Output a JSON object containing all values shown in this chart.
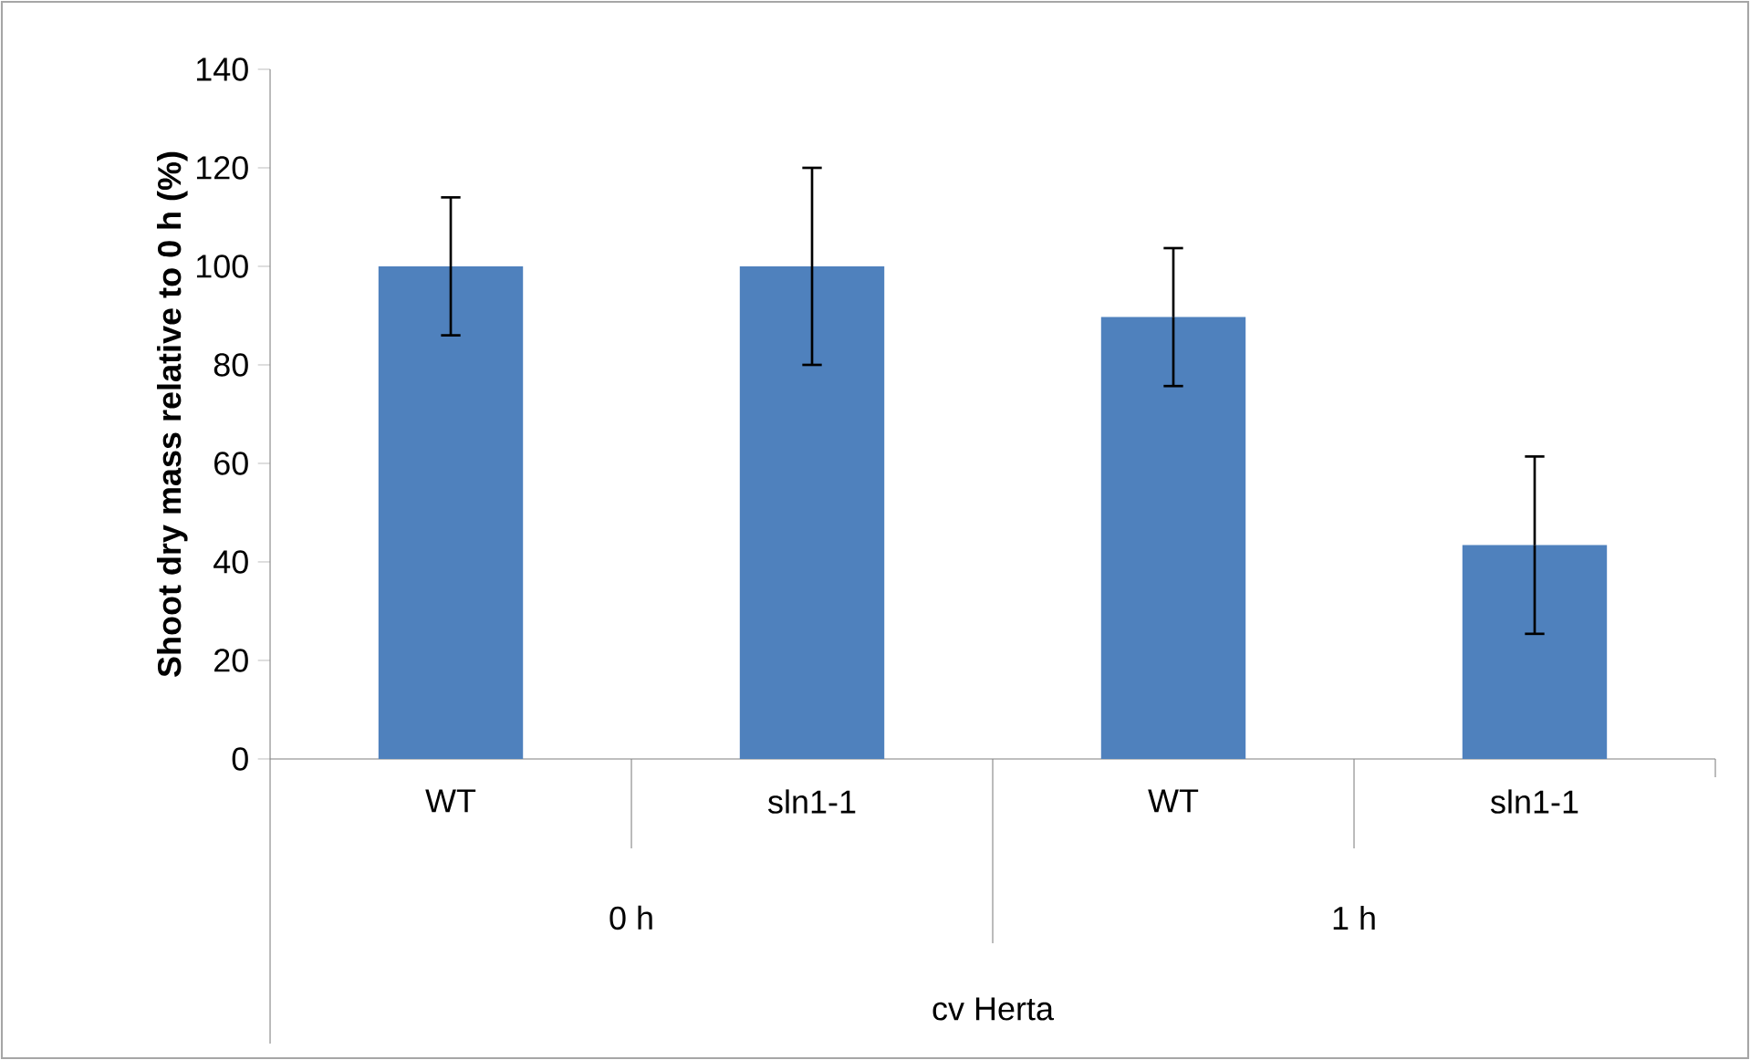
{
  "chart_data": {
    "type": "bar",
    "ylabel": "Shoot dry mass relative to 0 h (%)",
    "categories": [
      "WT",
      "sln1-1",
      "WT",
      "sln1-1"
    ],
    "values": [
      100,
      100,
      89.7,
      43.4
    ],
    "errors": [
      14,
      20,
      14,
      18
    ],
    "color": "#4f81bd",
    "ylim": [
      0,
      140
    ],
    "yticks": [
      0,
      20,
      40,
      60,
      80,
      100,
      120,
      140
    ],
    "annotations": [
      "0 h",
      "1 h",
      "cv Herta"
    ]
  }
}
